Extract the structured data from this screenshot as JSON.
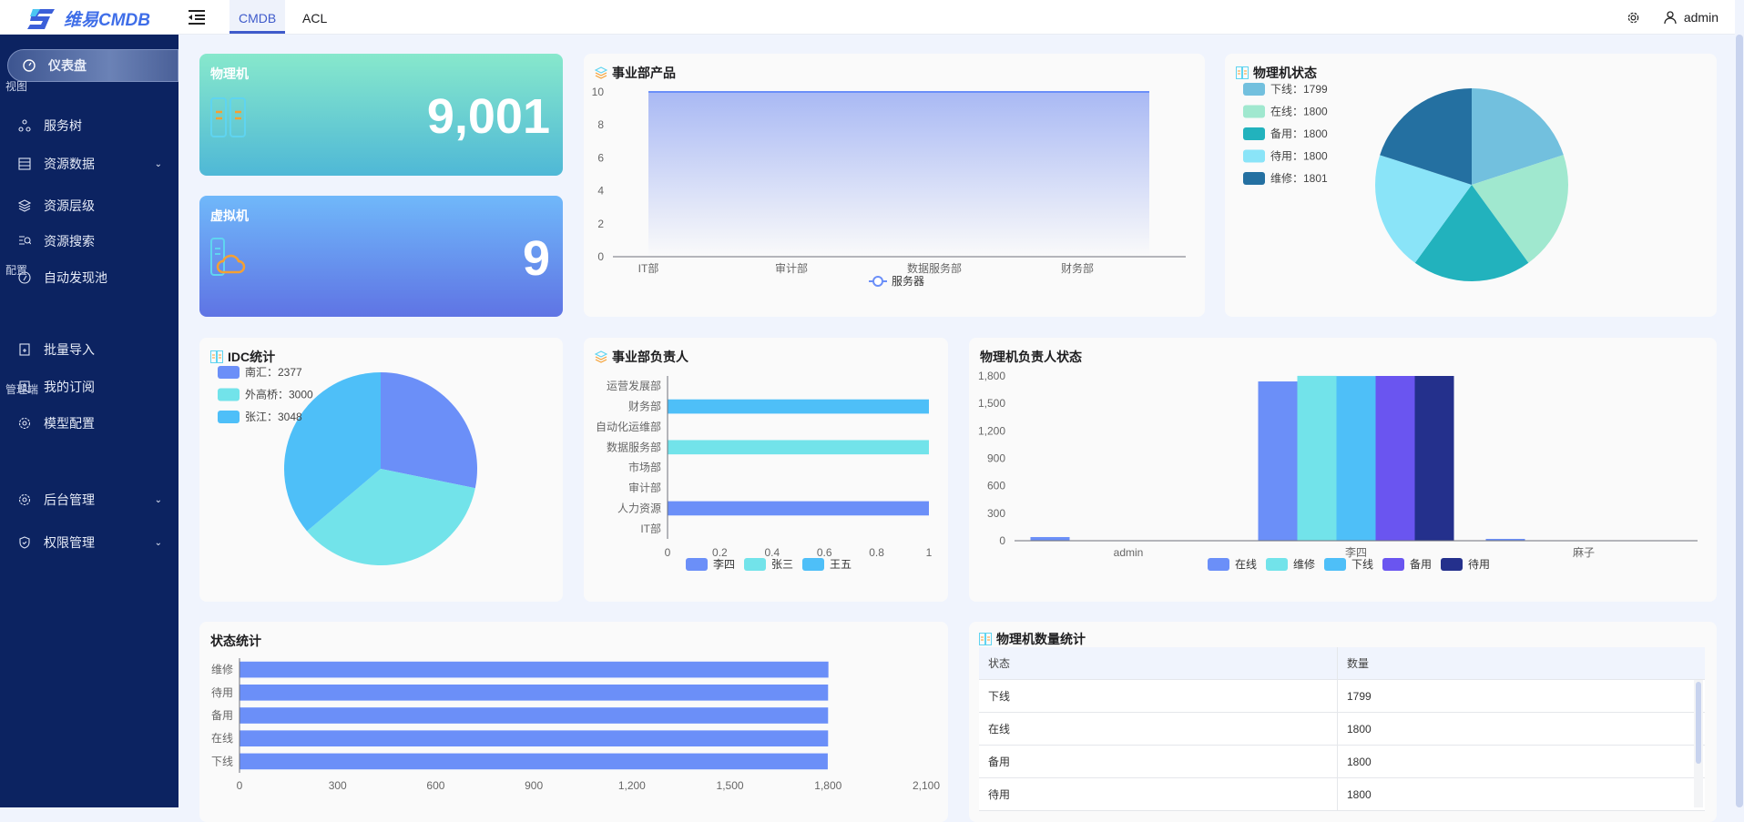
{
  "header": {
    "logo_text": "维易CMDB",
    "tabs": [
      {
        "label": "CMDB",
        "active": true
      },
      {
        "label": "ACL",
        "active": false
      }
    ],
    "user": "admin",
    "icons": [
      "menu-fold-icon",
      "gear-icon",
      "user-icon"
    ]
  },
  "sidebar": {
    "dashboard": "仪表盘",
    "groups": [
      {
        "label": "视图",
        "items": [
          {
            "label": "服务树",
            "icon": "cluster-icon"
          },
          {
            "label": "资源数据",
            "icon": "database-icon",
            "expandable": true
          },
          {
            "label": "资源层级",
            "icon": "layers-icon"
          },
          {
            "label": "资源搜索",
            "icon": "search-list-icon"
          },
          {
            "label": "自动发现池",
            "icon": "compass-icon"
          }
        ]
      },
      {
        "label": "配置",
        "items": [
          {
            "label": "批量导入",
            "icon": "import-icon"
          },
          {
            "label": "我的订阅",
            "icon": "bookmark-icon"
          },
          {
            "label": "模型配置",
            "icon": "model-gear-icon"
          }
        ]
      },
      {
        "label": "管理端",
        "items": [
          {
            "label": "后台管理",
            "icon": "gear-icon",
            "expandable": true
          },
          {
            "label": "权限管理",
            "icon": "shield-icon",
            "expandable": true
          }
        ]
      }
    ]
  },
  "stats": {
    "physical": {
      "label": "物理机",
      "value": "9,001"
    },
    "virtual": {
      "label": "虚拟机",
      "value": "9"
    }
  },
  "colors": {
    "primary": "#6b8ff8",
    "cyan": "#72e3ea",
    "sky": "#4ebff8",
    "purple": "#6a55f0",
    "navy": "#24308c",
    "sidebar": "#0c2361"
  },
  "chart_data": [
    {
      "id": "dept-products",
      "title": "事业部产品",
      "type": "area",
      "categories": [
        "IT部",
        "审计部",
        "数据服务部",
        "财务部"
      ],
      "series": [
        {
          "name": "服务器",
          "values": [
            10,
            10,
            10,
            10
          ]
        }
      ],
      "yticks": [
        "0",
        "2",
        "4",
        "6",
        "8",
        "10"
      ],
      "ylim": [
        0,
        10
      ]
    },
    {
      "id": "physical-status",
      "title": "物理机状态",
      "type": "pie",
      "slices": [
        {
          "name": "下线",
          "value": 1799,
          "color": "#72c0de"
        },
        {
          "name": "在线",
          "value": 1800,
          "color": "#a0e8cf"
        },
        {
          "name": "备用",
          "value": 1800,
          "color": "#22b2bd"
        },
        {
          "name": "待用",
          "value": 1800,
          "color": "#8ae4f8"
        },
        {
          "name": "维修",
          "value": 1801,
          "color": "#2470a1"
        }
      ],
      "legend_sep": "：",
      "legend": "top-left"
    },
    {
      "id": "idc",
      "title": "IDC统计",
      "type": "pie",
      "slices": [
        {
          "name": "南汇",
          "value": 2377,
          "color": "#6b8ff8"
        },
        {
          "name": "外高桥",
          "value": 3000,
          "color": "#72e3ea"
        },
        {
          "name": "张江",
          "value": 3048,
          "color": "#4ebff8"
        }
      ],
      "legend_sep": "：",
      "legend": "top-left"
    },
    {
      "id": "dept-owner",
      "title": "事业部负责人",
      "type": "bar",
      "orientation": "horizontal",
      "stacked": true,
      "categories": [
        "IT部",
        "人力资源",
        "审计部",
        "市场部",
        "数据服务部",
        "自动化运维部",
        "财务部",
        "运营发展部"
      ],
      "series": [
        {
          "name": "李四",
          "color": "#6b8ff8",
          "values": [
            0,
            1,
            0,
            0,
            0,
            0,
            0,
            0
          ]
        },
        {
          "name": "张三",
          "color": "#72e3ea",
          "values": [
            0,
            0,
            0,
            0,
            1,
            0,
            0,
            0
          ]
        },
        {
          "name": "王五",
          "color": "#4ebff8",
          "values": [
            0,
            0,
            0,
            0,
            0,
            0,
            1,
            0
          ]
        }
      ],
      "xticks": [
        "0",
        "0.2",
        "0.4",
        "0.6",
        "0.8",
        "1"
      ],
      "xlim": [
        0,
        1
      ]
    },
    {
      "id": "owner-status",
      "title": "物理机负责人状态",
      "type": "bar",
      "orientation": "vertical",
      "categories": [
        "admin",
        "李四",
        "麻子"
      ],
      "series": [
        {
          "name": "在线",
          "color": "#6b8ff8",
          "values": [
            40,
            1740,
            20
          ]
        },
        {
          "name": "维修",
          "color": "#72e3ea",
          "values": [
            0,
            1801,
            0
          ]
        },
        {
          "name": "下线",
          "color": "#4ebff8",
          "values": [
            0,
            1799,
            0
          ]
        },
        {
          "name": "备用",
          "color": "#6a55f0",
          "values": [
            0,
            1800,
            0
          ]
        },
        {
          "name": "待用",
          "color": "#24308c",
          "values": [
            0,
            1800,
            0
          ]
        }
      ],
      "yticks": [
        "0",
        "300",
        "600",
        "900",
        "1,200",
        "1,500",
        "1,800"
      ],
      "ylim": [
        0,
        1800
      ]
    },
    {
      "id": "status-stats",
      "title": "状态统计",
      "type": "bar",
      "orientation": "horizontal",
      "categories": [
        "下线",
        "在线",
        "备用",
        "待用",
        "维修"
      ],
      "series": [
        {
          "color": "#6b8ff8",
          "values": [
            1799,
            1800,
            1800,
            1800,
            1801
          ]
        }
      ],
      "xticks": [
        "0",
        "300",
        "600",
        "900",
        "1,200",
        "1,500",
        "1,800",
        "2,100"
      ],
      "xlim": [
        0,
        2100
      ]
    }
  ],
  "table": {
    "title": "物理机数量统计",
    "columns": [
      "状态",
      "数量"
    ],
    "rows": [
      [
        "下线",
        "1799"
      ],
      [
        "在线",
        "1800"
      ],
      [
        "备用",
        "1800"
      ],
      [
        "待用",
        "1800"
      ]
    ]
  }
}
